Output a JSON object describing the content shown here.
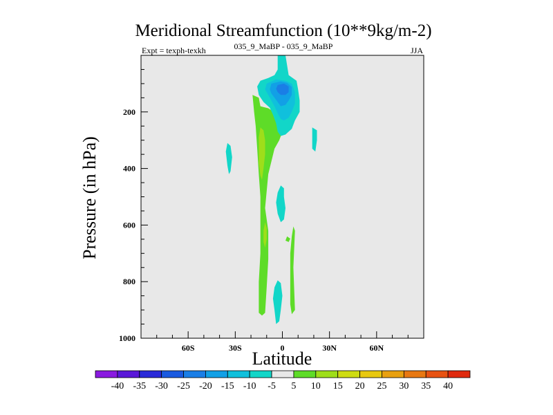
{
  "chart_data": {
    "type": "contour",
    "title": "Meridional Streamfunction (10**9kg/m-2)",
    "subtitle_left": "Expt = texph-texkh",
    "subtitle_center": "035_9_MaBP - 035_9_MaBP",
    "subtitle_right": "JJA",
    "xlabel": "Latitude",
    "ylabel": "Pressure (in hPa)",
    "xlim": [
      -90,
      90
    ],
    "ylim": [
      1000,
      0
    ],
    "x_ticks": [
      {
        "value": -60,
        "label": "60S"
      },
      {
        "value": -30,
        "label": "30S"
      },
      {
        "value": 0,
        "label": "0"
      },
      {
        "value": 30,
        "label": "30N"
      },
      {
        "value": 60,
        "label": "60N"
      }
    ],
    "y_ticks": [
      {
        "value": 200,
        "label": "200"
      },
      {
        "value": 400,
        "label": "400"
      },
      {
        "value": 600,
        "label": "600"
      },
      {
        "value": 800,
        "label": "800"
      },
      {
        "value": 1000,
        "label": "1000"
      }
    ],
    "background": "#e8e8e8",
    "colorbar": {
      "labels": [
        "-40",
        "-35",
        "-30",
        "-25",
        "-20",
        "-15",
        "-10",
        "-5",
        "5",
        "10",
        "15",
        "20",
        "25",
        "30",
        "35",
        "40"
      ],
      "colors": [
        "#8a1ae0",
        "#5a18d8",
        "#2a2ad8",
        "#1a5ae0",
        "#1a7ee6",
        "#12a0e6",
        "#10c0dc",
        "#12d6c8",
        "#e8e8e8",
        "#5edc28",
        "#9ede1a",
        "#cedc12",
        "#e8c810",
        "#e8a010",
        "#e87812",
        "#e85212",
        "#e02a0e"
      ]
    },
    "regions": [
      {
        "level": "5 to 10",
        "color": "#5edc28",
        "points": [
          [
            -19,
            140
          ],
          [
            -15,
            150
          ],
          [
            -14,
            180
          ],
          [
            -9,
            187
          ],
          [
            -4,
            205
          ],
          [
            2,
            240
          ],
          [
            -2,
            300
          ],
          [
            -5,
            330
          ],
          [
            -9,
            420
          ],
          [
            -11,
            540
          ],
          [
            -9,
            620
          ],
          [
            -9,
            720
          ],
          [
            -10,
            820
          ],
          [
            -11,
            910
          ],
          [
            -13,
            920
          ],
          [
            -15,
            910
          ],
          [
            -15,
            800
          ],
          [
            -14,
            700
          ],
          [
            -14,
            600
          ],
          [
            -14,
            500
          ],
          [
            -15,
            420
          ],
          [
            -16,
            330
          ],
          [
            -17,
            250
          ],
          [
            -18,
            200
          ]
        ]
      },
      {
        "level": "10 to 15",
        "color": "#9ede1a",
        "points": [
          [
            -14,
            255
          ],
          [
            -12,
            265
          ],
          [
            -11,
            300
          ],
          [
            -11,
            350
          ],
          [
            -12,
            400
          ],
          [
            -13,
            440
          ],
          [
            -14,
            425
          ],
          [
            -15,
            380
          ],
          [
            -15,
            330
          ],
          [
            -15,
            290
          ]
        ]
      },
      {
        "level": "10 to 15",
        "color": "#9ede1a",
        "points": [
          [
            -11,
            590
          ],
          [
            -10,
            610
          ],
          [
            -10,
            650
          ],
          [
            -11,
            680
          ],
          [
            -12,
            660
          ],
          [
            -12,
            620
          ]
        ]
      },
      {
        "level": "5 to 10",
        "color": "#5edc28",
        "points": [
          [
            7,
            605
          ],
          [
            8,
            620
          ],
          [
            7,
            750
          ],
          [
            8,
            900
          ],
          [
            6,
            915
          ],
          [
            5,
            880
          ],
          [
            5,
            790
          ],
          [
            5,
            700
          ],
          [
            6,
            640
          ]
        ]
      },
      {
        "level": "5 to 10",
        "color": "#5edc28",
        "points": [
          [
            3,
            640
          ],
          [
            5,
            648
          ],
          [
            4,
            660
          ],
          [
            2,
            655
          ]
        ]
      },
      {
        "level": "-10 to -5",
        "color": "#12d6c8",
        "points": [
          [
            -3,
            0
          ],
          [
            2,
            0
          ],
          [
            4,
            70
          ],
          [
            9,
            90
          ],
          [
            10,
            120
          ],
          [
            11,
            160
          ],
          [
            11,
            200
          ],
          [
            8,
            230
          ],
          [
            6,
            260
          ],
          [
            2,
            280
          ],
          [
            -1,
            285
          ],
          [
            -3,
            270
          ],
          [
            -4,
            240
          ],
          [
            -6,
            210
          ],
          [
            -8,
            185
          ],
          [
            -12,
            165
          ],
          [
            -15,
            140
          ],
          [
            -16,
            110
          ],
          [
            -14,
            90
          ],
          [
            -9,
            80
          ],
          [
            -5,
            70
          ],
          [
            -3,
            50
          ]
        ]
      },
      {
        "level": "-15 to -10",
        "color": "#10c0dc",
        "points": [
          [
            -10,
            100
          ],
          [
            -4,
            85
          ],
          [
            2,
            90
          ],
          [
            6,
            100
          ],
          [
            8,
            130
          ],
          [
            8,
            170
          ],
          [
            6,
            200
          ],
          [
            4,
            220
          ],
          [
            1,
            230
          ],
          [
            -1,
            225
          ],
          [
            -3,
            205
          ],
          [
            -5,
            180
          ],
          [
            -7,
            160
          ],
          [
            -9,
            140
          ],
          [
            -11,
            120
          ]
        ]
      },
      {
        "level": "-20 to -15",
        "color": "#12a0e6",
        "points": [
          [
            -7,
            100
          ],
          [
            -1,
            92
          ],
          [
            3,
            97
          ],
          [
            6,
            112
          ],
          [
            6,
            140
          ],
          [
            4,
            160
          ],
          [
            2,
            175
          ],
          [
            -1,
            180
          ],
          [
            -3,
            165
          ],
          [
            -5,
            150
          ],
          [
            -7,
            135
          ],
          [
            -8,
            120
          ]
        ]
      },
      {
        "level": "-25 to -20",
        "color": "#1a7ee6",
        "points": [
          [
            -3,
            105
          ],
          [
            1,
            100
          ],
          [
            4,
            110
          ],
          [
            4,
            130
          ],
          [
            2,
            140
          ],
          [
            -1,
            140
          ],
          [
            -3,
            130
          ],
          [
            -4,
            118
          ]
        ]
      },
      {
        "level": "-10 to -5",
        "color": "#12d6c8",
        "points": [
          [
            19,
            255
          ],
          [
            22,
            265
          ],
          [
            22,
            300
          ],
          [
            21,
            340
          ],
          [
            19,
            330
          ],
          [
            19,
            290
          ]
        ]
      },
      {
        "level": "-10 to -5",
        "color": "#12d6c8",
        "points": [
          [
            -35,
            310
          ],
          [
            -33,
            320
          ],
          [
            -32,
            360
          ],
          [
            -33,
            410
          ],
          [
            -34,
            420
          ],
          [
            -35,
            390
          ],
          [
            -36,
            340
          ]
        ]
      },
      {
        "level": "-10 to -5",
        "color": "#12d6c8",
        "points": [
          [
            -1,
            460
          ],
          [
            1,
            470
          ],
          [
            1,
            500
          ],
          [
            2,
            540
          ],
          [
            1,
            580
          ],
          [
            -1,
            590
          ],
          [
            -3,
            560
          ],
          [
            -4,
            520
          ],
          [
            -3,
            485
          ]
        ]
      },
      {
        "level": "-10 to -5",
        "color": "#12d6c8",
        "points": [
          [
            -3,
            795
          ],
          [
            -1,
            805
          ],
          [
            0,
            850
          ],
          [
            -1,
            900
          ],
          [
            -2,
            940
          ],
          [
            -4,
            950
          ],
          [
            -5,
            900
          ],
          [
            -6,
            860
          ],
          [
            -5,
            820
          ]
        ]
      }
    ]
  }
}
